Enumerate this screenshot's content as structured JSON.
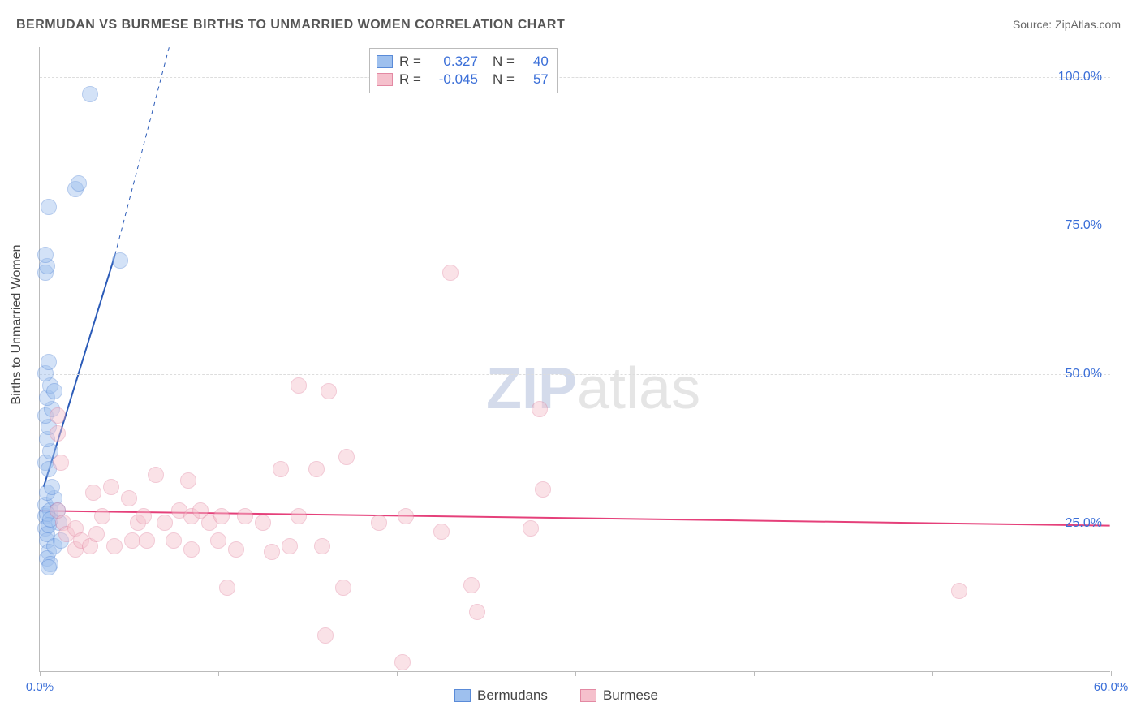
{
  "title": "BERMUDAN VS BURMESE BIRTHS TO UNMARRIED WOMEN CORRELATION CHART",
  "source_label": "Source:",
  "source_name": "ZipAtlas.com",
  "ylabel": "Births to Unmarried Women",
  "watermark_a": "ZIP",
  "watermark_b": "atlas",
  "chart": {
    "type": "scatter",
    "xlim": [
      0,
      60
    ],
    "ylim": [
      0,
      105
    ],
    "x_ticks": [
      0,
      10,
      20,
      30,
      40,
      50,
      60
    ],
    "x_labels_shown": {
      "0": "0.0%",
      "60": "60.0%"
    },
    "y_gridlines": [
      25,
      50,
      75,
      100
    ],
    "y_labels": [
      "25.0%",
      "50.0%",
      "75.0%",
      "100.0%"
    ],
    "background_color": "#ffffff",
    "grid_color": "#dddddd",
    "axis_color": "#bbbbbb",
    "label_color": "#3b6fd8",
    "point_radius": 10,
    "point_opacity": 0.45,
    "series": [
      {
        "name": "Bermudans",
        "fill": "#9ec0ee",
        "stroke": "#5a8bd8",
        "r_value": "0.327",
        "n_value": "40",
        "trend": {
          "x1": 0.2,
          "y1": 31,
          "x2": 4.2,
          "y2": 70,
          "dash_to_x": 7.5,
          "dash_to_y": 108,
          "color": "#2b5bb8",
          "width": 2
        },
        "points": [
          [
            0.3,
            26
          ],
          [
            0.3,
            24
          ],
          [
            0.4,
            22
          ],
          [
            0.5,
            20
          ],
          [
            0.4,
            19
          ],
          [
            0.6,
            18
          ],
          [
            0.5,
            17.5
          ],
          [
            0.3,
            28
          ],
          [
            0.6,
            27
          ],
          [
            0.8,
            29
          ],
          [
            1.0,
            27
          ],
          [
            1.1,
            25
          ],
          [
            0.4,
            30
          ],
          [
            0.7,
            31
          ],
          [
            0.3,
            35
          ],
          [
            0.5,
            34
          ],
          [
            0.6,
            37
          ],
          [
            0.4,
            39
          ],
          [
            0.5,
            41
          ],
          [
            0.3,
            43
          ],
          [
            0.7,
            44
          ],
          [
            0.4,
            46
          ],
          [
            0.6,
            48
          ],
          [
            0.3,
            50
          ],
          [
            0.5,
            52
          ],
          [
            0.8,
            47
          ],
          [
            0.4,
            26.5
          ],
          [
            0.3,
            67
          ],
          [
            0.4,
            68
          ],
          [
            0.3,
            70
          ],
          [
            0.5,
            78
          ],
          [
            2.0,
            81
          ],
          [
            2.2,
            82
          ],
          [
            4.5,
            69
          ],
          [
            2.8,
            97
          ],
          [
            0.4,
            23
          ],
          [
            0.5,
            24.5
          ],
          [
            0.8,
            21
          ],
          [
            0.6,
            25.5
          ],
          [
            1.2,
            22
          ]
        ]
      },
      {
        "name": "Burmese",
        "fill": "#f5c0cc",
        "stroke": "#e389a3",
        "r_value": "-0.045",
        "n_value": "57",
        "trend": {
          "x1": 0,
          "y1": 27,
          "x2": 60,
          "y2": 24.5,
          "color": "#e5407a",
          "width": 2
        },
        "points": [
          [
            1.0,
            40
          ],
          [
            1.2,
            35
          ],
          [
            1.0,
            27
          ],
          [
            1.3,
            25
          ],
          [
            1.5,
            23
          ],
          [
            2.0,
            24
          ],
          [
            2.0,
            20.5
          ],
          [
            2.3,
            22
          ],
          [
            2.8,
            21
          ],
          [
            3.0,
            30
          ],
          [
            3.2,
            23
          ],
          [
            3.5,
            26
          ],
          [
            4.0,
            31
          ],
          [
            4.2,
            21
          ],
          [
            5.0,
            29
          ],
          [
            5.2,
            22
          ],
          [
            5.5,
            25
          ],
          [
            5.8,
            26
          ],
          [
            6.0,
            22
          ],
          [
            6.5,
            33
          ],
          [
            7.0,
            25
          ],
          [
            7.5,
            22
          ],
          [
            7.8,
            27
          ],
          [
            8.3,
            32
          ],
          [
            8.5,
            26
          ],
          [
            8.5,
            20.5
          ],
          [
            9.0,
            27
          ],
          [
            9.5,
            25
          ],
          [
            10.0,
            22
          ],
          [
            10.2,
            26
          ],
          [
            10.5,
            14
          ],
          [
            11.0,
            20.5
          ],
          [
            11.5,
            26
          ],
          [
            12.5,
            25
          ],
          [
            13.0,
            20
          ],
          [
            13.5,
            34
          ],
          [
            14.0,
            21
          ],
          [
            14.5,
            26
          ],
          [
            14.5,
            48
          ],
          [
            15.5,
            34
          ],
          [
            15.8,
            21
          ],
          [
            16.0,
            6
          ],
          [
            16.2,
            47
          ],
          [
            17.0,
            14
          ],
          [
            17.2,
            36
          ],
          [
            19.0,
            25
          ],
          [
            20.3,
            1.5
          ],
          [
            20.5,
            26
          ],
          [
            22.5,
            23.5
          ],
          [
            23.0,
            67
          ],
          [
            24.2,
            14.5
          ],
          [
            24.5,
            10
          ],
          [
            27.5,
            24
          ],
          [
            28.0,
            44
          ],
          [
            28.2,
            30.5
          ],
          [
            51.5,
            13.5
          ],
          [
            1.0,
            43
          ]
        ]
      }
    ]
  },
  "stats_legend": {
    "r_label": "R =",
    "n_label": "N ="
  },
  "bottom_legend": true
}
